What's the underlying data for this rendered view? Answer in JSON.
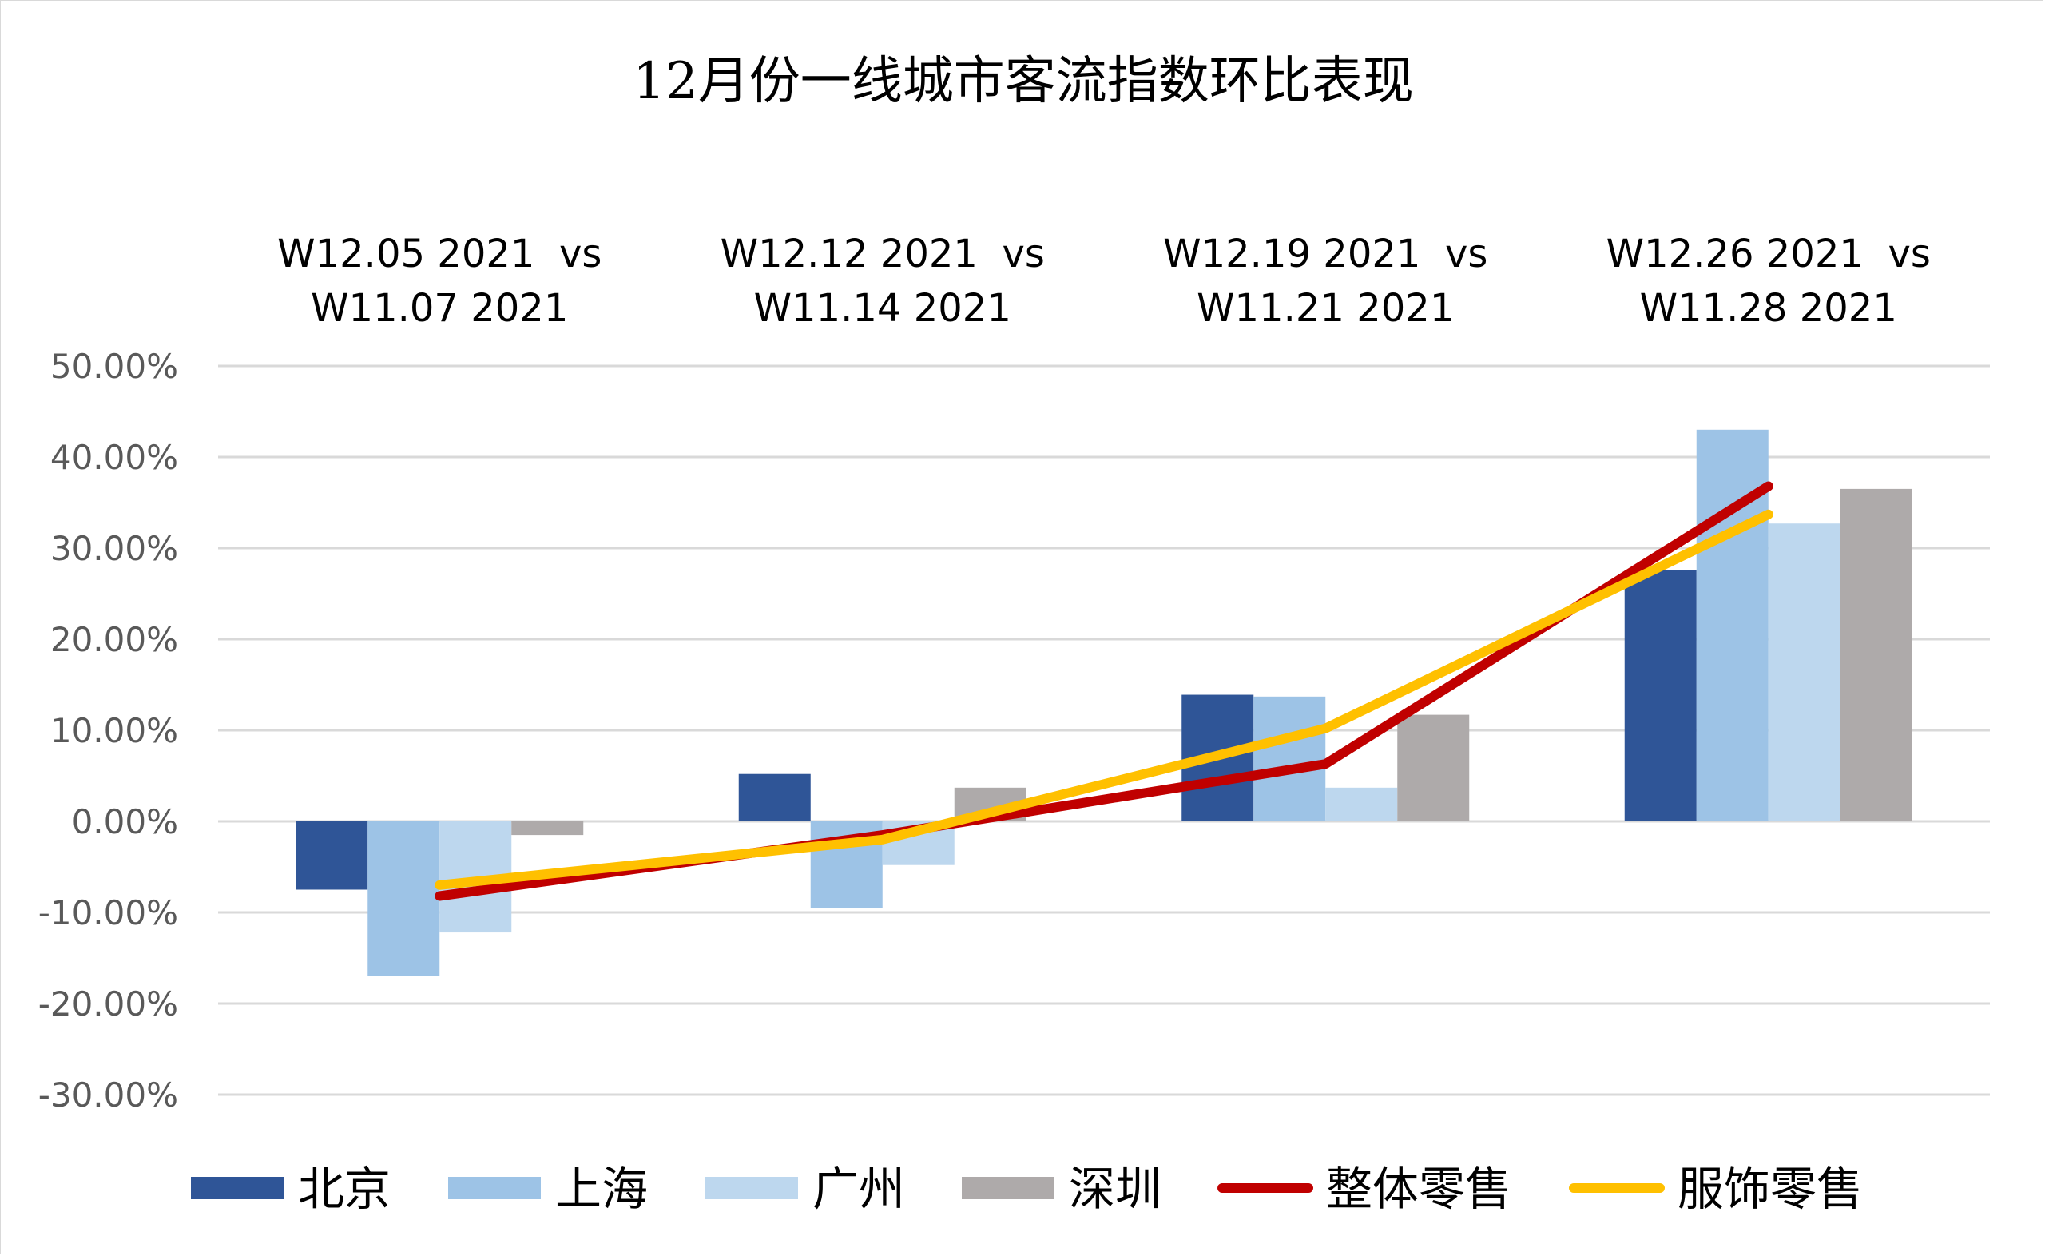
{
  "chart_data": {
    "type": "bar",
    "title": "12月份一线城市客流指数环比表现",
    "xlabel": "",
    "ylabel": "",
    "categories": [
      [
        "W12.05 2021  vs",
        "W11.07 2021"
      ],
      [
        "W12.12 2021  vs",
        "W11.14 2021"
      ],
      [
        "W12.19 2021  vs",
        "W11.21 2021"
      ],
      [
        "W12.26 2021  vs",
        "W11.28 2021"
      ]
    ],
    "category_axis_position": "top",
    "ylim": [
      -30,
      50
    ],
    "yticks": [
      50,
      40,
      30,
      20,
      10,
      0,
      -10,
      -20,
      -30
    ],
    "ytick_labels": [
      "50.00%",
      "40.00%",
      "30.00%",
      "20.00%",
      "10.00%",
      "0.00%",
      "-10.00%",
      "-20.00%",
      "-30.00%"
    ],
    "grid": true,
    "legend_position": "bottom",
    "series": [
      {
        "name": "北京",
        "kind": "bar",
        "color": "#2f5597",
        "values": [
          -7.5,
          5.2,
          13.9,
          27.6
        ]
      },
      {
        "name": "上海",
        "kind": "bar",
        "color": "#9dc3e6",
        "values": [
          -17.0,
          -9.5,
          13.7,
          43.0
        ]
      },
      {
        "name": "广州",
        "kind": "bar",
        "color": "#bdd7ee",
        "values": [
          -12.2,
          -4.8,
          3.7,
          32.7
        ]
      },
      {
        "name": "深圳",
        "kind": "bar",
        "color": "#aeaaaa",
        "values": [
          -1.5,
          3.7,
          11.7,
          36.5
        ]
      },
      {
        "name": "整体零售",
        "kind": "line",
        "color": "#c00000",
        "values": [
          -8.2,
          -1.5,
          6.3,
          36.8
        ]
      },
      {
        "name": "服饰零售",
        "kind": "line",
        "color": "#ffc000",
        "values": [
          -7.0,
          -2.0,
          10.2,
          33.7
        ]
      }
    ]
  }
}
